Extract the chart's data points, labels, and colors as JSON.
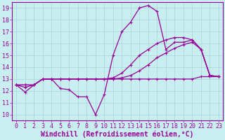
{
  "xlabel": "Windchill (Refroidissement éolien,°C)",
  "xlim": [
    -0.5,
    23.5
  ],
  "ylim": [
    9.5,
    19.5
  ],
  "xticks": [
    0,
    1,
    2,
    3,
    4,
    5,
    6,
    7,
    8,
    9,
    10,
    11,
    12,
    13,
    14,
    15,
    16,
    17,
    18,
    19,
    20,
    21,
    22,
    23
  ],
  "yticks": [
    10,
    11,
    12,
    13,
    14,
    15,
    16,
    17,
    18,
    19
  ],
  "background_color": "#c8eef0",
  "grid_color": "#a8d4d8",
  "line_color": "#990099",
  "line1": [
    12.5,
    11.9,
    12.5,
    13.0,
    13.0,
    12.2,
    12.1,
    11.5,
    11.5,
    10.0,
    11.7,
    15.0,
    17.0,
    17.8,
    19.0,
    19.2,
    18.7,
    15.5,
    16.1,
    16.1,
    16.3,
    15.5,
    13.3,
    13.2
  ],
  "line2": [
    12.5,
    12.3,
    12.5,
    13.0,
    13.0,
    13.0,
    13.0,
    13.0,
    13.0,
    13.0,
    13.0,
    13.1,
    13.5,
    14.2,
    15.0,
    15.5,
    16.0,
    16.3,
    16.5,
    16.5,
    16.3,
    15.5,
    13.3,
    13.2
  ],
  "line3": [
    12.5,
    12.5,
    12.5,
    13.0,
    13.0,
    13.0,
    13.0,
    13.0,
    13.0,
    13.0,
    13.0,
    13.0,
    13.1,
    13.3,
    13.7,
    14.2,
    14.8,
    15.2,
    15.6,
    15.9,
    16.1,
    15.5,
    13.3,
    13.2
  ],
  "line4": [
    12.5,
    12.5,
    12.5,
    13.0,
    13.0,
    13.0,
    13.0,
    13.0,
    13.0,
    13.0,
    13.0,
    13.0,
    13.0,
    13.0,
    13.0,
    13.0,
    13.0,
    13.0,
    13.0,
    13.0,
    13.0,
    13.2,
    13.2,
    13.2
  ],
  "linewidth": 0.9,
  "marker_size": 2.5,
  "tick_fontsize": 6,
  "xlabel_fontsize": 7
}
